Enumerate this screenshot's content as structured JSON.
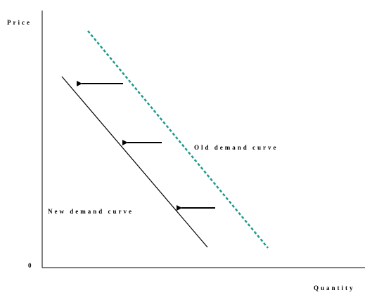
{
  "axes": {
    "y_label": "Price",
    "x_label": "Quantity",
    "origin": "0"
  },
  "curves": [
    {
      "label": "Old demand curve"
    },
    {
      "label": "New demand curve"
    }
  ]
}
